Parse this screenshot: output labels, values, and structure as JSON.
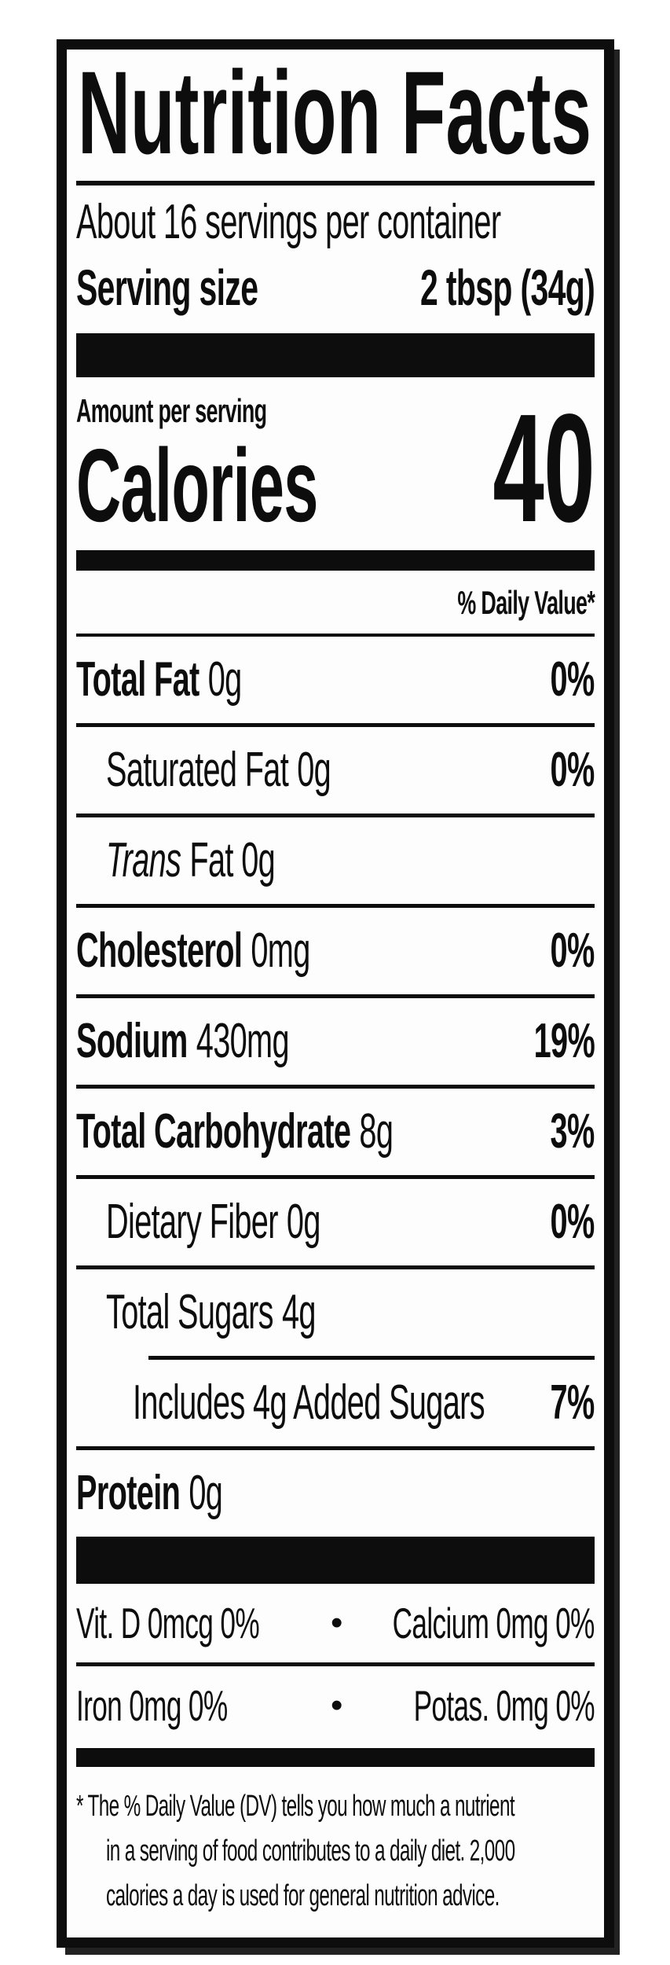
{
  "label": {
    "title": "Nutrition Facts",
    "servings_per_container": "About 16 servings per container",
    "serving_size_label": "Serving size",
    "serving_size_value": "2 tbsp (34g)",
    "amount_per_serving": "Amount per serving",
    "calories_label": "Calories",
    "calories_value": "40",
    "daily_value_header": "% Daily Value*",
    "nutrients": [
      {
        "name": "Total Fat",
        "amount": "0g",
        "dv": "0%"
      },
      {
        "name": "Saturated Fat",
        "amount": "0g",
        "dv": "0%"
      },
      {
        "name_italic": "Trans",
        "name_rest": "Fat 0g",
        "dv": ""
      },
      {
        "name": "Cholesterol",
        "amount": "0mg",
        "dv": "0%"
      },
      {
        "name": "Sodium",
        "amount": "430mg",
        "dv": "19%"
      },
      {
        "name": "Total Carbohydrate",
        "amount": "8g",
        "dv": "3%"
      },
      {
        "name": "Dietary Fiber",
        "amount": "0g",
        "dv": "0%"
      },
      {
        "name": "Total Sugars",
        "amount": "4g",
        "dv": ""
      },
      {
        "name": "Includes 4g Added Sugars",
        "dv": "7%"
      },
      {
        "name": "Protein",
        "amount": "0g",
        "dv": ""
      }
    ],
    "micronutrients": {
      "bullet": "•",
      "rows": [
        {
          "left": "Vit. D 0mcg 0%",
          "right": "Calcium 0mg 0%"
        },
        {
          "left": "Iron 0mg 0%",
          "right": "Potas. 0mg 0%"
        }
      ]
    },
    "footnote_lines": [
      "* The % Daily Value (DV) tells you how much a nutrient",
      "in a serving of food contributes to a daily diet. 2,000",
      "calories a day is used for general nutrition advice."
    ],
    "colors": {
      "ink": "#0d0d0d",
      "bg": "#fdfdfd"
    }
  }
}
